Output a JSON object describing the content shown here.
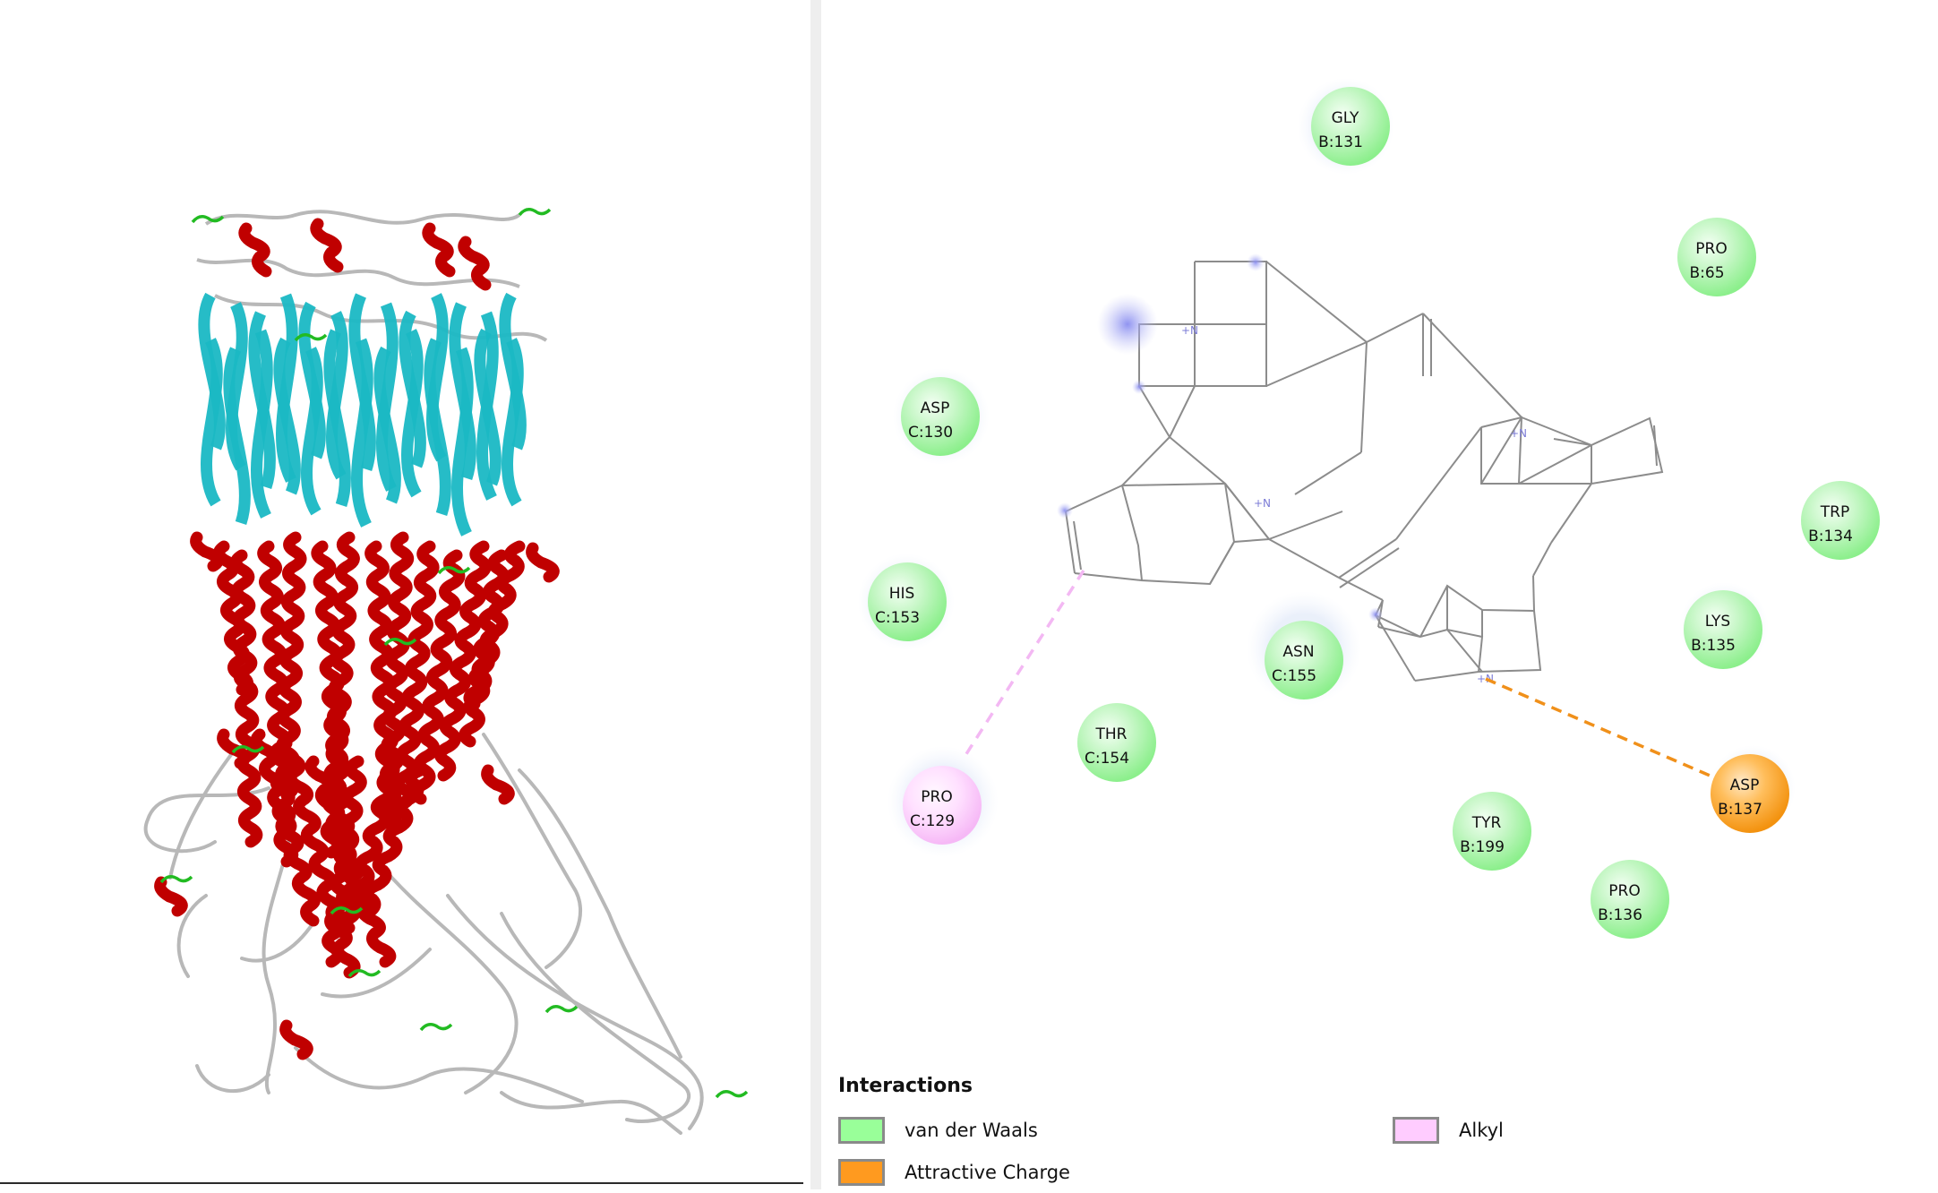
{
  "legend": {
    "title": "Interactions",
    "items": [
      {
        "label": "van der Waals",
        "color": "#99ff99"
      },
      {
        "label": "Attractive Charge",
        "color": "#ff9a1f"
      },
      {
        "label": "Alkyl",
        "color": "#ffccff"
      }
    ]
  },
  "residues": [
    {
      "name": "GLY",
      "id": "B:131",
      "type": "vdw"
    },
    {
      "name": "PRO",
      "id": "B:65",
      "type": "vdw"
    },
    {
      "name": "ASP",
      "id": "C:130",
      "type": "vdw"
    },
    {
      "name": "TRP",
      "id": "B:134",
      "type": "vdw"
    },
    {
      "name": "HIS",
      "id": "C:153",
      "type": "vdw"
    },
    {
      "name": "ASN",
      "id": "C:155",
      "type": "vdw"
    },
    {
      "name": "LYS",
      "id": "B:135",
      "type": "vdw"
    },
    {
      "name": "THR",
      "id": "C:154",
      "type": "vdw"
    },
    {
      "name": "ASP",
      "id": "B:137",
      "type": "charge"
    },
    {
      "name": "PRO",
      "id": "C:129",
      "type": "alkyl"
    },
    {
      "name": "TYR",
      "id": "B:199",
      "type": "vdw"
    },
    {
      "name": "PRO",
      "id": "B:136",
      "type": "vdw"
    }
  ],
  "atom_labels": [
    "+N",
    "+N",
    "+N",
    "+N"
  ],
  "colors": {
    "vdw": "#99ff99",
    "charge": "#ff9a1f",
    "alkyl": "#ffccff",
    "bond": "#8c8c8c",
    "helix": "#c00000",
    "sheet": "#1ab8c4",
    "turn": "#22bb22",
    "coil": "#b8b8b8"
  }
}
